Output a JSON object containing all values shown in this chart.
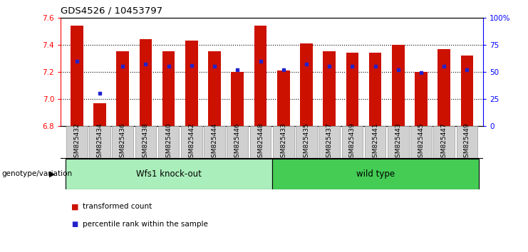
{
  "title": "GDS4526 / 10453797",
  "categories": [
    "GSM825432",
    "GSM825434",
    "GSM825436",
    "GSM825438",
    "GSM825440",
    "GSM825442",
    "GSM825444",
    "GSM825446",
    "GSM825448",
    "GSM825433",
    "GSM825435",
    "GSM825437",
    "GSM825439",
    "GSM825441",
    "GSM825443",
    "GSM825445",
    "GSM825447",
    "GSM825449"
  ],
  "red_values": [
    7.54,
    6.97,
    7.35,
    7.44,
    7.35,
    7.43,
    7.35,
    7.2,
    7.54,
    7.21,
    7.41,
    7.35,
    7.34,
    7.34,
    7.4,
    7.2,
    7.37,
    7.32
  ],
  "blue_values": [
    60,
    30,
    55,
    57,
    55,
    56,
    55,
    52,
    60,
    52,
    57,
    55,
    55,
    55,
    52,
    49,
    55,
    52
  ],
  "ymin": 6.8,
  "ymax": 7.6,
  "group1_label": "Wfs1 knock-out",
  "group2_label": "wild type",
  "group1_count": 9,
  "group2_count": 9,
  "bar_color": "#cc1100",
  "blue_color": "#2222cc",
  "group1_bg": "#aaeebb",
  "group2_bg": "#44cc55",
  "xtick_bg": "#d0d0d0",
  "xtick_edge": "#999999",
  "genotype_label": "genotype/variation",
  "legend1": "transformed count",
  "legend2": "percentile rank within the sample",
  "yticks_left": [
    6.8,
    7.0,
    7.2,
    7.4,
    7.6
  ],
  "yticks_right": [
    0,
    25,
    50,
    75,
    100
  ],
  "grid_lines": [
    7.0,
    7.2,
    7.4
  ]
}
